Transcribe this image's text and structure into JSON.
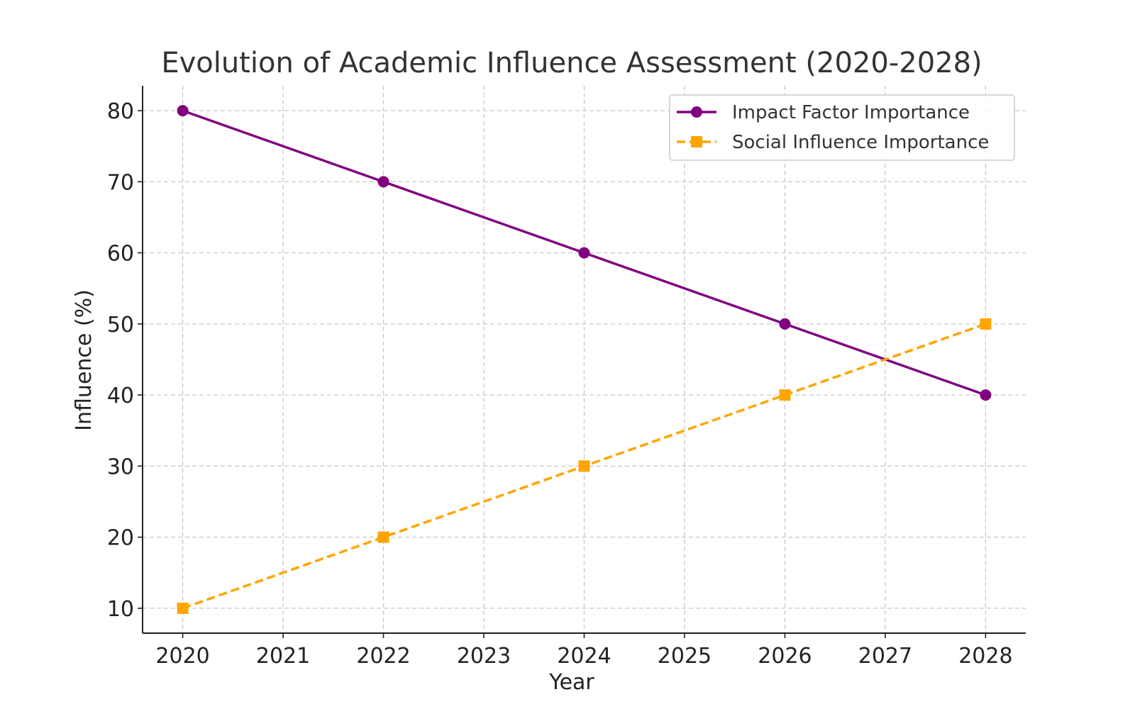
{
  "chart_data": {
    "type": "line",
    "title": "Evolution of Academic Influence Assessment (2020-2028)",
    "xlabel": "Year",
    "ylabel": "Influence (%)",
    "x": [
      2020,
      2022,
      2024,
      2026,
      2028
    ],
    "xticks": [
      "2020",
      "2021",
      "2022",
      "2023",
      "2024",
      "2025",
      "2026",
      "2027",
      "2028"
    ],
    "yticks": [
      "10",
      "20",
      "30",
      "40",
      "50",
      "60",
      "70",
      "80"
    ],
    "xlim": [
      2019.6,
      2028.4
    ],
    "ylim": [
      6.5,
      83.5
    ],
    "grid": true,
    "legend_position": "top-right",
    "series": [
      {
        "name": "Impact Factor Importance",
        "values": [
          80,
          70,
          60,
          50,
          40
        ],
        "color": "#800080",
        "line_style": "solid",
        "marker": "circle"
      },
      {
        "name": "Social Influence Importance",
        "values": [
          10,
          20,
          30,
          40,
          50
        ],
        "color": "#FFA500",
        "line_style": "dashed",
        "marker": "square"
      }
    ]
  }
}
